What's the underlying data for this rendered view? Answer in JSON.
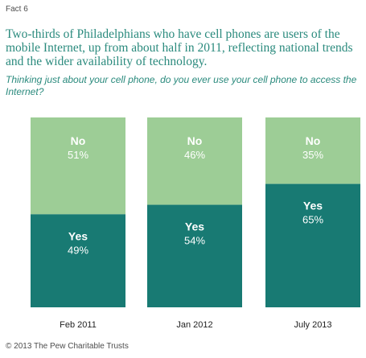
{
  "header": {
    "fact": "Fact 6",
    "headline": "Two-thirds of Philadelphians who have cell phones are users of the mobile Internet, up from about half in 2011, reflecting national trends and the wider availability of technology.",
    "question": "Thinking just about your cell phone, do you ever use your cell phone to access the Internet?"
  },
  "footer": {
    "copyright": "© 2013 The Pew Charitable Trusts"
  },
  "chart_data": {
    "type": "bar",
    "stacked": true,
    "categories": [
      "Feb 2011",
      "Jan 2012",
      "July 2013"
    ],
    "series": [
      {
        "name": "Yes",
        "values": [
          49,
          54,
          65
        ],
        "labels": [
          "49%",
          "54%",
          "65%"
        ],
        "color": "#187a73"
      },
      {
        "name": "No",
        "values": [
          51,
          46,
          35
        ],
        "labels": [
          "51%",
          "46%",
          "35%"
        ],
        "color": "#9dcd96"
      }
    ],
    "ylim": [
      0,
      100
    ],
    "grid": false,
    "legend": "none"
  }
}
